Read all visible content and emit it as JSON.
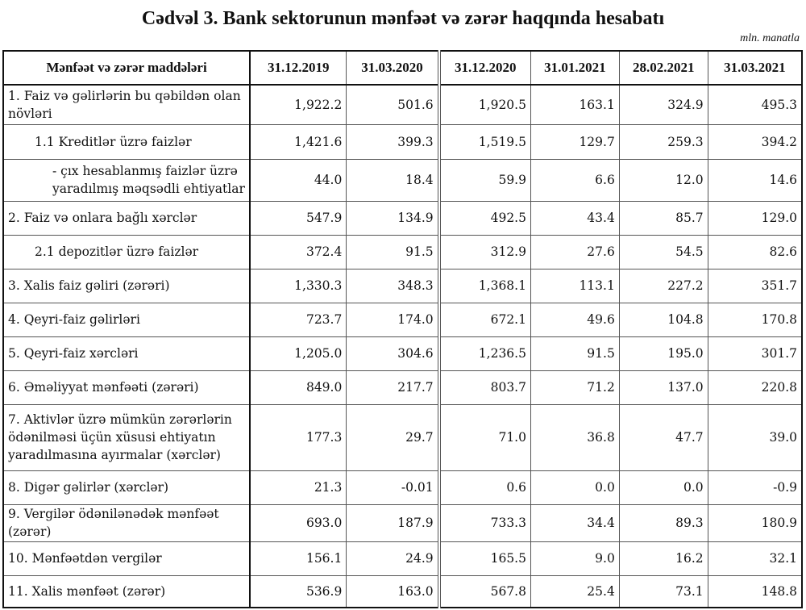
{
  "title": "Cədvəl 3. Bank sektorunun mənfəət və zərər haqqında hesabatı",
  "unit": "mln. manatla",
  "columns": [
    "Mənfəət və zərər maddələri",
    "31.12.2019",
    "31.03.2020",
    "31.12.2020",
    "31.01.2021",
    "28.02.2021",
    "31.03.2021"
  ],
  "rows": [
    {
      "label": "1. Faiz və gəlirlərin bu qəbildən olan növləri",
      "values": [
        "1,922.2",
        "501.6",
        "1,920.5",
        "163.1",
        "324.9",
        "495.3"
      ],
      "h": 49,
      "indent": 0
    },
    {
      "label": "1.1 Kreditlər üzrə faizlər",
      "values": [
        "1,421.6",
        "399.3",
        "1,519.5",
        "129.7",
        "259.3",
        "394.2"
      ],
      "h": 43,
      "indent": 1
    },
    {
      "label": "-  çıx hesablanmış faizlər üzrə yaradılmış məqsədli ehtiyatlar",
      "values": [
        "44.0",
        "18.4",
        "59.9",
        "6.6",
        "12.0",
        "14.6"
      ],
      "h": 52,
      "indent": 2
    },
    {
      "label": "2. Faiz və onlara bağlı xərclər",
      "values": [
        "547.9",
        "134.9",
        "492.5",
        "43.4",
        "85.7",
        "129.0"
      ],
      "h": 42,
      "indent": 0
    },
    {
      "label": "2.1 depozitlər üzrə faizlər",
      "values": [
        "372.4",
        "91.5",
        "312.9",
        "27.6",
        "54.5",
        "82.6"
      ],
      "h": 42,
      "indent": 1
    },
    {
      "label": "3. Xalis faiz gəliri (zərəri)",
      "values": [
        "1,330.3",
        "348.3",
        "1,368.1",
        "113.1",
        "227.2",
        "351.7"
      ],
      "h": 42,
      "indent": 0
    },
    {
      "label": "4. Qeyri-faiz gəlirləri",
      "values": [
        "723.7",
        "174.0",
        "672.1",
        "49.6",
        "104.8",
        "170.8"
      ],
      "h": 42,
      "indent": 0
    },
    {
      "label": "5. Qeyri-faiz xərcləri",
      "values": [
        "1,205.0",
        "304.6",
        "1,236.5",
        "91.5",
        "195.0",
        "301.7"
      ],
      "h": 42,
      "indent": 0
    },
    {
      "label": "6. Əməliyyat mənfəəti (zərəri)",
      "values": [
        "849.0",
        "217.7",
        "803.7",
        "71.2",
        "137.0",
        "220.8"
      ],
      "h": 42,
      "indent": 0
    },
    {
      "label": "7. Aktivlər üzrə mümkün zərərlərin ödənilməsi üçün xüsusi ehtiyatın yaradılmasına ayırmalar (xərclər)",
      "values": [
        "177.3",
        "29.7",
        "71.0",
        "36.8",
        "47.7",
        "39.0"
      ],
      "h": 82,
      "indent": 0
    },
    {
      "label": "8. Digər gəlirlər (xərclər)",
      "values": [
        "21.3",
        "-0.01",
        "0.6",
        "0.0",
        "0.0",
        "-0.9"
      ],
      "h": 42,
      "indent": 0
    },
    {
      "label": "9. Vergilər ödənilənədək mənfəət (zərər)",
      "values": [
        "693.0",
        "187.9",
        "733.3",
        "34.4",
        "89.3",
        "180.9"
      ],
      "h": 46,
      "indent": 0
    },
    {
      "label": "10. Mənfəətdən vergilər",
      "values": [
        "156.1",
        "24.9",
        "165.5",
        "9.0",
        "16.2",
        "32.1"
      ],
      "h": 42,
      "indent": 0
    },
    {
      "label": "11. Xalis mənfəət (zərər)",
      "values": [
        "536.9",
        "163.0",
        "567.8",
        "25.4",
        "73.1",
        "148.8"
      ],
      "h": 40,
      "indent": 0
    }
  ]
}
